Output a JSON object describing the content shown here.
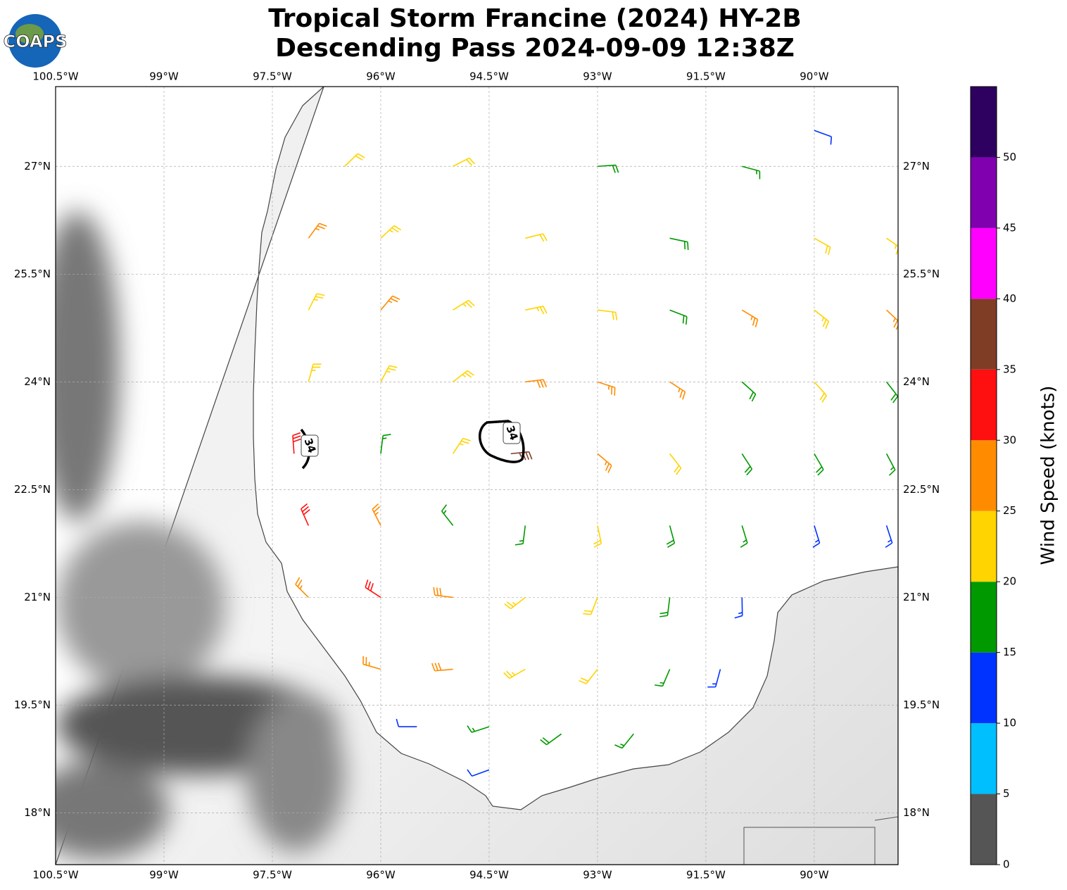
{
  "chart_data": {
    "type": "barbs",
    "title": [
      "Tropical Storm Francine (2024) HY-2B",
      "Descending Pass 2024-09-09 12:38Z"
    ],
    "logo": "COAPS",
    "xlim": [
      -100.5,
      -88.84
    ],
    "ylim": [
      17.28,
      28.11
    ],
    "xticks": [
      {
        "value": -100.5,
        "label": "100.5°W"
      },
      {
        "value": -99,
        "label": "99°W"
      },
      {
        "value": -97.5,
        "label": "97.5°W"
      },
      {
        "value": -96,
        "label": "96°W"
      },
      {
        "value": -94.5,
        "label": "94.5°W"
      },
      {
        "value": -93,
        "label": "93°W"
      },
      {
        "value": -91.5,
        "label": "91.5°W"
      },
      {
        "value": -90,
        "label": "90°W"
      }
    ],
    "yticks": [
      {
        "value": 18,
        "label": "18°N"
      },
      {
        "value": 19.5,
        "label": "19.5°N"
      },
      {
        "value": 21,
        "label": "21°N"
      },
      {
        "value": 22.5,
        "label": "22.5°N"
      },
      {
        "value": 24,
        "label": "24°N"
      },
      {
        "value": 25.5,
        "label": "25.5°N"
      },
      {
        "value": 27,
        "label": "27°N"
      }
    ],
    "grid": true,
    "contour_level": 34,
    "barbs": {
      "lon": [
        -90,
        -91,
        -93,
        -95,
        -96.5,
        -97,
        -96,
        -94,
        -92,
        -90,
        -89,
        -97,
        -96,
        -95,
        -94,
        -93,
        -92,
        -91,
        -90,
        -89,
        -97,
        -96,
        -95,
        -94,
        -93,
        -92,
        -91,
        -90,
        -89,
        -97.2,
        -96,
        -95,
        -94.2,
        -93,
        -92,
        -91,
        -90,
        -89,
        -97,
        -96,
        -95,
        -94,
        -93,
        -92,
        -91,
        -90,
        -89,
        -97,
        -96,
        -95,
        -94,
        -93,
        -92,
        -91,
        -96,
        -95,
        -94,
        -93,
        -92,
        -91.3,
        -95.5,
        -94.5,
        -93.5,
        -92.5,
        -94.5
      ],
      "lat": [
        27.5,
        27,
        27,
        27,
        27,
        26,
        26,
        26,
        26,
        26,
        26,
        25,
        25,
        25,
        25,
        25,
        25,
        25,
        25,
        25,
        24,
        24,
        24,
        24,
        24,
        24,
        24,
        24,
        24,
        23,
        23,
        23,
        23,
        23,
        23,
        23,
        23,
        23,
        22,
        22,
        22,
        22,
        22,
        22,
        22,
        22,
        22,
        21,
        21,
        21,
        21,
        21,
        21,
        21,
        20,
        20,
        20,
        20,
        20,
        20,
        19.2,
        19.2,
        19.1,
        19.1,
        18.6
      ],
      "speed": [
        12,
        17,
        18,
        22,
        22,
        27,
        23,
        22,
        18,
        22,
        23,
        23,
        27,
        24,
        23,
        22,
        19,
        27,
        23,
        26,
        24,
        23,
        24,
        28,
        27,
        26,
        19,
        22,
        18,
        32,
        17,
        23,
        36,
        27,
        22,
        18,
        18,
        17,
        31,
        27,
        17,
        16,
        21,
        19,
        17,
        14,
        13,
        27,
        31,
        28,
        23,
        22,
        18,
        13,
        27,
        28,
        24,
        22,
        17,
        13,
        12,
        17,
        18,
        17,
        12
      ],
      "direction": [
        110,
        105,
        86,
        63,
        46,
        36,
        47,
        76,
        102,
        119,
        125,
        27,
        40,
        58,
        78,
        97,
        111,
        121,
        128,
        133,
        15,
        28,
        52,
        83,
        108,
        123,
        132,
        138,
        142,
        356,
        7,
        33,
        84,
        130,
        142,
        147,
        150,
        152,
        336,
        333,
        322,
        187,
        168,
        165,
        163,
        163,
        162,
        315,
        303,
        277,
        232,
        201,
        187,
        179,
        286,
        265,
        240,
        218,
        203,
        195,
        270,
        252,
        234,
        219,
        250
      ]
    },
    "colorbar": {
      "label": "Wind Speed (knots)",
      "bounds": [
        0,
        5,
        10,
        15,
        20,
        25,
        30,
        35,
        40,
        45,
        50,
        55
      ],
      "colors": [
        "#555555",
        "#00bfff",
        "#0033ff",
        "#009900",
        "#ffd400",
        "#ff8c00",
        "#ff1010",
        "#803d26",
        "#ff00ff",
        "#8000b0",
        "#2e0060"
      ],
      "ticks": [
        0,
        5,
        10,
        15,
        20,
        25,
        30,
        35,
        40,
        45,
        50
      ]
    }
  }
}
